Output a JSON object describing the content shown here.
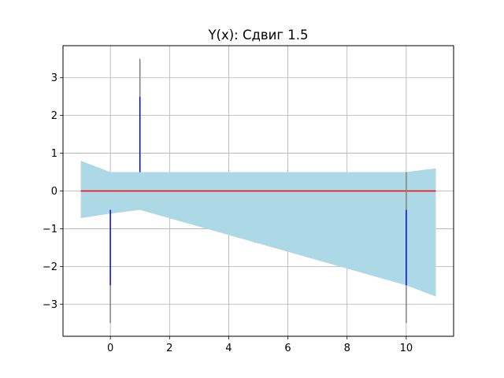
{
  "chart_data": {
    "type": "area",
    "title": "Y(x): Сдвиг 1.5",
    "xlabel": "",
    "ylabel": "",
    "xlim": [
      -1.6,
      11.6
    ],
    "ylim": [
      -3.85,
      3.85
    ],
    "xticks": [
      0,
      2,
      4,
      6,
      8,
      10
    ],
    "yticks": [
      -3,
      -2,
      -1,
      0,
      1,
      2,
      3
    ],
    "xtick_labels": [
      "0",
      "2",
      "4",
      "6",
      "8",
      "10"
    ],
    "ytick_labels": [
      "−3",
      "−2",
      "−1",
      "0",
      "1",
      "2",
      "3"
    ],
    "grid": true,
    "band": {
      "color": "#add8e6",
      "x": [
        -1,
        0,
        1,
        10,
        11
      ],
      "upper": [
        0.8,
        0.5,
        0.5,
        0.5,
        0.6
      ],
      "lower": [
        -0.72,
        -0.6,
        -0.5,
        -2.5,
        -2.8
      ]
    },
    "line": {
      "color": "#ff0000",
      "x": [
        -1,
        11
      ],
      "y": [
        0,
        0
      ]
    },
    "segments": [
      {
        "x": 0,
        "y1": -0.5,
        "y2": -2.5,
        "color": "#0000ff"
      },
      {
        "x": 0,
        "y1": -2.5,
        "y2": -3.5,
        "color": "#808080"
      },
      {
        "x": 1,
        "y1": 0.5,
        "y2": 2.5,
        "color": "#0000ff"
      },
      {
        "x": 1,
        "y1": 2.5,
        "y2": 3.5,
        "color": "#808080"
      },
      {
        "x": 10,
        "y1": -0.5,
        "y2": -2.5,
        "color": "#0000ff"
      },
      {
        "x": 10,
        "y1": -2.5,
        "y2": -3.5,
        "color": "#808080"
      },
      {
        "x": 10,
        "y1": 0.5,
        "y2": -0.5,
        "color": "#808080"
      }
    ]
  }
}
